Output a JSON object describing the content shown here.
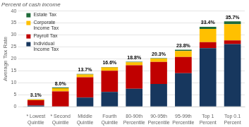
{
  "chart_data": {
    "type": "bar",
    "title": "Percent of cash income",
    "ylabel": "Average Tax Rate",
    "categories": [
      "* Lowest\nQuintile",
      "* Second\nQuintile",
      "Middle\nQuintile",
      "Fourth\nQuintile",
      "80-90th\nPercentile",
      "90-95th\nPercentile",
      "95-99th\nPercentile",
      "Top 1\nPercent",
      "Top 0.1\nPercent"
    ],
    "series": [
      {
        "name": "Individual\nIncome Tax",
        "color": "#17375E",
        "values": [
          0.5,
          0.0,
          3.8,
          6.2,
          7.5,
          9.5,
          14.0,
          24.5,
          26.2
        ]
      },
      {
        "name": "Payroll Tax",
        "color": "#C00000",
        "values": [
          2.2,
          6.4,
          8.5,
          8.8,
          9.8,
          9.2,
          6.8,
          2.5,
          1.5
        ]
      },
      {
        "name": "Corporate\nIncome Tax",
        "color": "#FFC000",
        "values": [
          0.3,
          1.3,
          1.2,
          1.4,
          1.3,
          1.4,
          2.5,
          5.5,
          6.8
        ]
      },
      {
        "name": "Estate Tax",
        "color": "#1F6B3A",
        "values": [
          0.1,
          0.3,
          0.2,
          0.2,
          0.2,
          0.2,
          0.5,
          0.9,
          1.2
        ]
      }
    ],
    "totals": [
      3.1,
      8.0,
      13.7,
      16.6,
      18.8,
      20.3,
      23.8,
      33.4,
      35.7
    ],
    "total_labels": [
      "3.1%",
      "8.0%",
      "13.7%",
      "16.6%",
      "18.8%",
      "20.3%",
      "23.8%",
      "33.4%",
      "35.7%"
    ],
    "stacked": true,
    "ylim": [
      0,
      40
    ],
    "yticks": [
      0,
      5,
      10,
      15,
      20,
      25,
      30,
      35,
      40
    ],
    "grid": true,
    "legend": "upper left"
  }
}
